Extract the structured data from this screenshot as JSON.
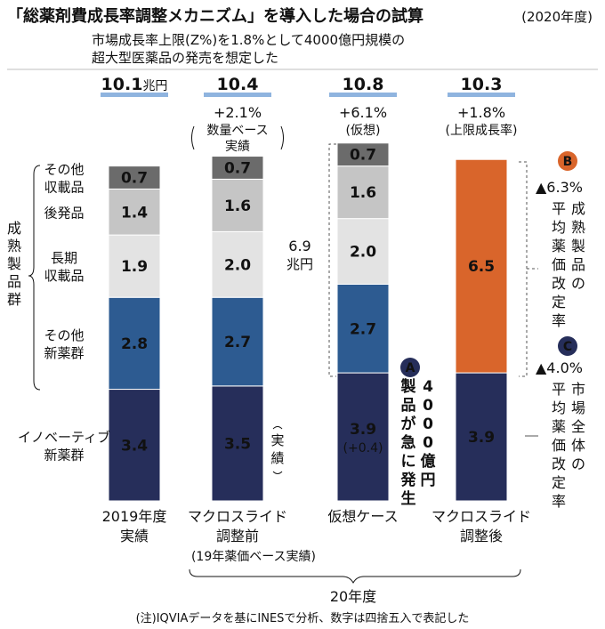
{
  "title": "「総薬剤費成長率調整メカニズム」を導入した場合の試算",
  "title_year": "(2020年度)",
  "subtitle_lines": [
    "市場成長率上限(Z%)を1.8%として4000億円規模の",
    "超大型医薬品の発売を想定した"
  ],
  "chart_data": {
    "type": "stacked-bar",
    "unit": "兆円",
    "categories": [
      "2019年度実績",
      "マクロスライド調整前",
      "仮想ケース",
      "マクロスライド調整後"
    ],
    "series": [
      {
        "name": "イノベーティブ新薬群",
        "values": [
          3.4,
          3.5,
          3.9,
          3.9
        ]
      },
      {
        "name": "その他新薬群",
        "values": [
          2.8,
          2.7,
          2.7,
          null
        ]
      },
      {
        "name": "長期収載品",
        "values": [
          1.9,
          2.0,
          2.0,
          null
        ]
      },
      {
        "name": "後発品",
        "values": [
          1.4,
          1.6,
          1.6,
          null
        ]
      },
      {
        "name": "その他収載品",
        "values": [
          0.7,
          0.7,
          0.7,
          null
        ]
      },
      {
        "name": "成熟製品群",
        "values": [
          null,
          null,
          null,
          6.5
        ]
      }
    ],
    "totals": [
      10.1,
      10.4,
      10.8,
      10.3
    ],
    "colors": {
      "innovative": "#262e5a",
      "other_new": "#2d5b91",
      "long_listed": "#e3e3e3",
      "generic": "#c5c5c5",
      "other_listed": "#6b6b6b",
      "mature": "#d9652b"
    }
  },
  "columns": [
    {
      "total": "10.1",
      "total_unit": "兆円",
      "growth": "",
      "note_lines": [],
      "cat_lines": [
        "2019年度",
        "実績"
      ],
      "segs": [
        {
          "key": "innovative",
          "val": 3.4,
          "label": "3.4"
        },
        {
          "key": "other_new",
          "val": 2.8,
          "label": "2.8"
        },
        {
          "key": "long_listed",
          "val": 1.9,
          "label": "1.9"
        },
        {
          "key": "generic",
          "val": 1.4,
          "label": "1.4"
        },
        {
          "key": "other_listed",
          "val": 0.7,
          "label": "0.7"
        }
      ]
    },
    {
      "total": "10.4",
      "total_unit": "",
      "growth": "+2.1%",
      "note_lines": [
        "数量ベース",
        "実績"
      ],
      "cat_lines": [
        "マクロスライド",
        "調整前"
      ],
      "segs": [
        {
          "key": "innovative",
          "val": 3.5,
          "label": "3.5"
        },
        {
          "key": "other_new",
          "val": 2.7,
          "label": "2.7"
        },
        {
          "key": "long_listed",
          "val": 2.0,
          "label": "2.0"
        },
        {
          "key": "generic",
          "val": 1.6,
          "label": "1.6"
        },
        {
          "key": "other_listed",
          "val": 0.7,
          "label": "0.7"
        }
      ]
    },
    {
      "total": "10.8",
      "total_unit": "",
      "growth": "+6.1%",
      "note_lines": [
        "(仮想)"
      ],
      "cat_lines": [
        "仮想ケース"
      ],
      "segs": [
        {
          "key": "innovative",
          "val": 3.9,
          "label": "3.9",
          "sub": "(+0.4)"
        },
        {
          "key": "other_new",
          "val": 2.7,
          "label": "2.7"
        },
        {
          "key": "long_listed",
          "val": 2.0,
          "label": "2.0"
        },
        {
          "key": "generic",
          "val": 1.6,
          "label": "1.6"
        },
        {
          "key": "other_listed",
          "val": 0.7,
          "label": "0.7"
        }
      ]
    },
    {
      "total": "10.3",
      "total_unit": "",
      "growth": "+1.8%",
      "note_lines": [
        "(上限成長率)"
      ],
      "cat_lines": [
        "マクロスライド",
        "調整後"
      ],
      "segs": [
        {
          "key": "innovative",
          "val": 3.9,
          "label": "3.9"
        },
        {
          "key": "mature",
          "val": 6.5,
          "label": "6.5"
        }
      ]
    }
  ],
  "row_labels": [
    {
      "key": "other_listed",
      "lines": [
        "その他",
        "収載品"
      ]
    },
    {
      "key": "generic",
      "lines": [
        "後発品"
      ]
    },
    {
      "key": "long_listed",
      "lines": [
        "長期",
        "収載品"
      ]
    },
    {
      "key": "other_new",
      "lines": [
        "その他",
        "新薬群"
      ]
    },
    {
      "key": "innovative",
      "lines": [
        "イノベーティブ",
        "新薬群"
      ]
    }
  ],
  "group_label": "成熟製品群",
  "actual_tag": "(実績)",
  "mid_annotation": [
    "6.9",
    "兆円"
  ],
  "callout_a": {
    "badge": "A",
    "lines": [
      "4000億円",
      "製品が急に発生"
    ]
  },
  "callout_b": {
    "badge": "B",
    "rate": "▲6.3%",
    "lines": [
      "成熟製品の",
      "平均薬価改定率"
    ]
  },
  "callout_c": {
    "badge": "C",
    "rate": "▲4.0%",
    "lines": [
      "市場全体の",
      "平均薬価改定率"
    ]
  },
  "sub_note": "(19年薬価ベース実績)",
  "fiscal_year_label": "20年度",
  "footnote": "(注)IQVIAデータを基にINESで分析、数字は四捨五入で表記した"
}
